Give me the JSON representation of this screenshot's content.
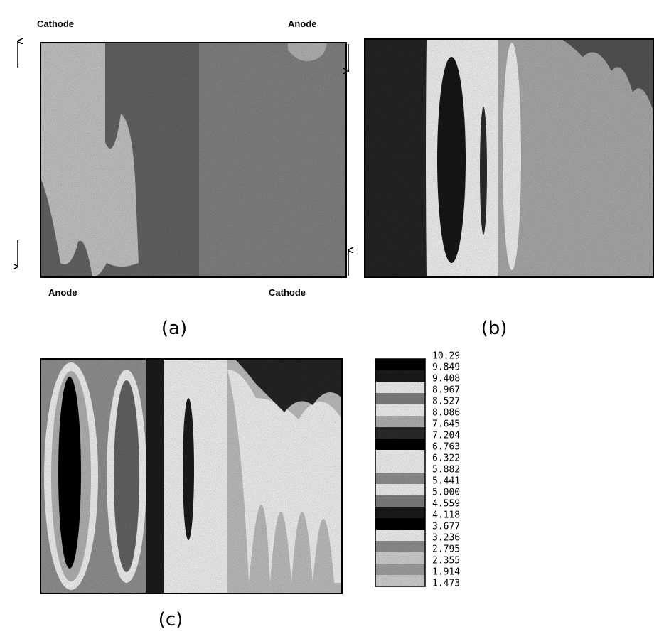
{
  "panels": [
    {
      "label": "(a)",
      "electrodes": [
        "Cathode",
        "Anode",
        "Anode",
        "Cathode"
      ]
    },
    {
      "label": "(b)"
    },
    {
      "label": "(c)"
    }
  ],
  "colorbar": {
    "labels": [
      "10.29",
      "9.849",
      "9.408",
      "8.967",
      "8.527",
      "8.086",
      "7.645",
      "7.204",
      "6.763",
      "6.322",
      "5.882",
      "5.441",
      "5.000",
      "4.559",
      "4.118",
      "3.677",
      "3.236",
      "2.795",
      "2.355",
      "1.914",
      "1.473"
    ]
  }
}
